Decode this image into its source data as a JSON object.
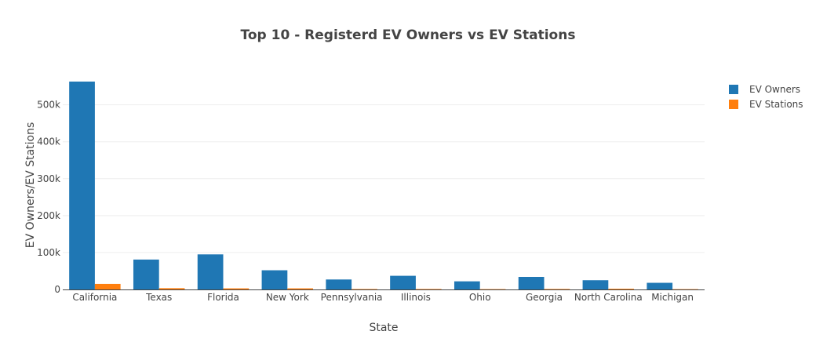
{
  "chart_data": {
    "type": "bar",
    "title": "Top 10 - Registerd EV Owners vs EV Stations",
    "xlabel": "State",
    "ylabel": "EV Owners/EV Stations",
    "categories": [
      "California",
      "Texas",
      "Florida",
      "New York",
      "Pennsylvania",
      "Illinois",
      "Ohio",
      "Georgia",
      "North Carolina",
      "Michigan"
    ],
    "series": [
      {
        "name": "EV Owners",
        "color": "#1f77b4",
        "values": [
          563000,
          81000,
          95000,
          52000,
          27000,
          37000,
          22000,
          34000,
          25000,
          18000
        ]
      },
      {
        "name": "EV Stations",
        "color": "#ff7f0e",
        "values": [
          15000,
          3500,
          3000,
          3000,
          1200,
          1300,
          1000,
          1400,
          2000,
          900
        ]
      }
    ],
    "ylim": [
      0,
      580000
    ],
    "yticks": [
      0,
      100000,
      200000,
      300000,
      400000,
      500000
    ],
    "ytick_labels": [
      "0",
      "100k",
      "200k",
      "300k",
      "400k",
      "500k"
    ],
    "grid": true,
    "legend_position": "top-right"
  }
}
